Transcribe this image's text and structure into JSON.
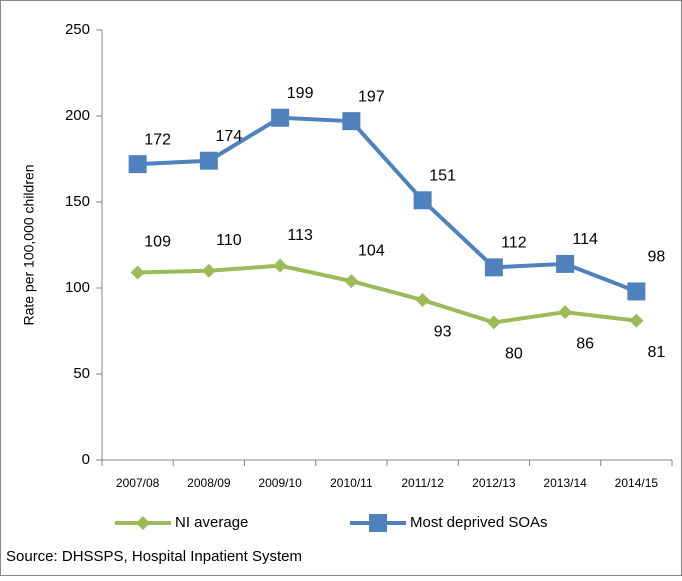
{
  "chart_data": {
    "type": "line",
    "y_label": "Rate per 100,000 children",
    "categories": [
      "2007/08",
      "2008/09",
      "2009/10",
      "2010/11",
      "2011/12",
      "2012/13",
      "2013/14",
      "2014/15"
    ],
    "series": [
      {
        "name": "NI average",
        "color": "#9bbb59",
        "marker": "diamond",
        "values": [
          109,
          110,
          113,
          104,
          93,
          80,
          86,
          81
        ]
      },
      {
        "name": "Most deprived SOAs",
        "color": "#4f81bd",
        "marker": "square",
        "values": [
          172,
          174,
          199,
          197,
          151,
          112,
          114,
          98
        ]
      }
    ],
    "ylim": [
      0,
      250
    ],
    "yticks": [
      0,
      50,
      100,
      150,
      200,
      250
    ],
    "source": "Source: DHSSPS, Hospital Inpatient System"
  }
}
